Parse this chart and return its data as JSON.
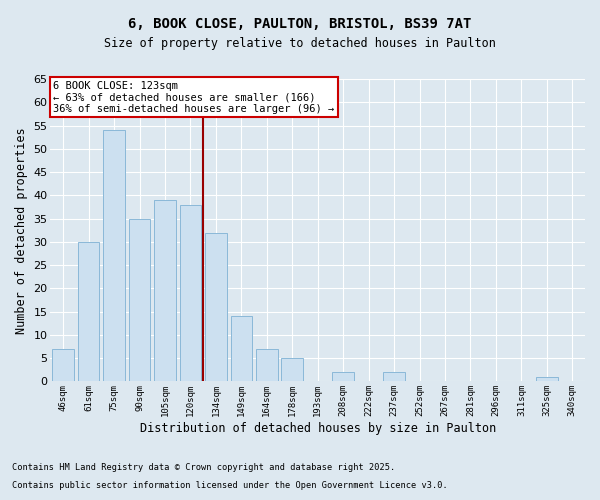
{
  "title1": "6, BOOK CLOSE, PAULTON, BRISTOL, BS39 7AT",
  "title2": "Size of property relative to detached houses in Paulton",
  "xlabel": "Distribution of detached houses by size in Paulton",
  "ylabel": "Number of detached properties",
  "categories": [
    "46sqm",
    "61sqm",
    "75sqm",
    "90sqm",
    "105sqm",
    "120sqm",
    "134sqm",
    "149sqm",
    "164sqm",
    "178sqm",
    "193sqm",
    "208sqm",
    "222sqm",
    "237sqm",
    "252sqm",
    "267sqm",
    "281sqm",
    "296sqm",
    "311sqm",
    "325sqm",
    "340sqm"
  ],
  "values": [
    7,
    30,
    54,
    35,
    39,
    38,
    32,
    14,
    7,
    5,
    0,
    2,
    0,
    2,
    0,
    0,
    0,
    0,
    0,
    1,
    0
  ],
  "bar_color": "#cce0f0",
  "bar_edge_color": "#8ab8d8",
  "vline_x": 5.5,
  "vline_color": "#990000",
  "annotation_title": "6 BOOK CLOSE: 123sqm",
  "annotation_line1": "← 63% of detached houses are smaller (166)",
  "annotation_line2": "36% of semi-detached houses are larger (96) →",
  "annotation_box_facecolor": "#ffffff",
  "annotation_box_edgecolor": "#cc0000",
  "ylim": [
    0,
    65
  ],
  "yticks": [
    0,
    5,
    10,
    15,
    20,
    25,
    30,
    35,
    40,
    45,
    50,
    55,
    60,
    65
  ],
  "background_color": "#dde8f0",
  "grid_color": "#ffffff",
  "footer1": "Contains HM Land Registry data © Crown copyright and database right 2025.",
  "footer2": "Contains public sector information licensed under the Open Government Licence v3.0."
}
